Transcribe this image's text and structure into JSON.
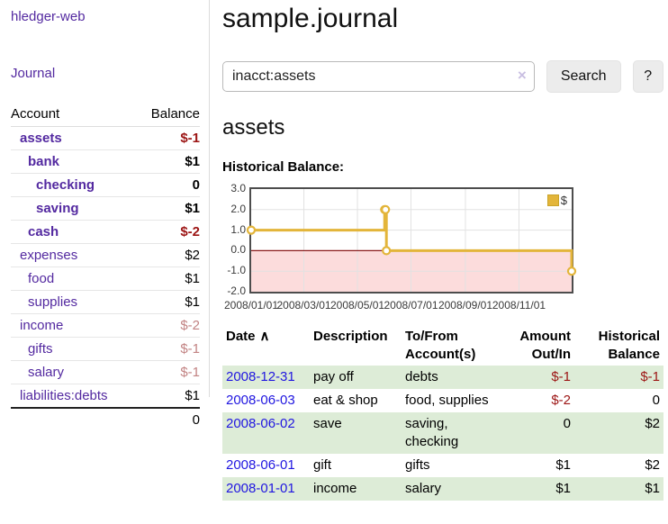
{
  "theme": {
    "purple": "#5329a0",
    "blue": "#2016e0",
    "neg": "#9c1514",
    "negsoft": "#c28383",
    "rowgreen": "#ddecd7",
    "gold": "#e3b53a",
    "pink": "#fcdcdc",
    "zero": "#8b1c1c",
    "gridborder": "#4d4d4d",
    "gridline": "#e2e2e2",
    "btnbg": "#ececec",
    "clearx": "#c9bfe2"
  },
  "sidebar": {
    "app_title": "hledger-web",
    "journal_label": "Journal",
    "accounts_table": {
      "headers": {
        "account": "Account",
        "balance": "Balance"
      },
      "rows": [
        {
          "name": "assets",
          "balance": "$-1",
          "indent": 1,
          "bold": true,
          "link_color": "purple",
          "balance_style": "neg"
        },
        {
          "name": "bank",
          "balance": "$1",
          "indent": 2,
          "bold": true,
          "link_color": "purple",
          "balance_style": "plain"
        },
        {
          "name": "checking",
          "balance": "0",
          "indent": 3,
          "bold": true,
          "link_color": "purple",
          "balance_style": "plain"
        },
        {
          "name": "saving",
          "balance": "$1",
          "indent": 3,
          "bold": true,
          "link_color": "purple",
          "balance_style": "plain"
        },
        {
          "name": "cash",
          "balance": "$-2",
          "indent": 2,
          "bold": true,
          "link_color": "purple",
          "balance_style": "neg"
        },
        {
          "name": "expenses",
          "balance": "$2",
          "indent": 1,
          "bold": false,
          "link_color": "purple",
          "balance_style": "plain-normal"
        },
        {
          "name": "food",
          "balance": "$1",
          "indent": 2,
          "bold": false,
          "link_color": "purple",
          "balance_style": "plain-normal"
        },
        {
          "name": "supplies",
          "balance": "$1",
          "indent": 2,
          "bold": false,
          "link_color": "purple",
          "balance_style": "plain-normal"
        },
        {
          "name": "income",
          "balance": "$-2",
          "indent": 1,
          "bold": false,
          "link_color": "purple",
          "balance_style": "negsoft"
        },
        {
          "name": "gifts",
          "balance": "$-1",
          "indent": 2,
          "bold": false,
          "link_color": "purple",
          "balance_style": "negsoft"
        },
        {
          "name": "salary",
          "balance": "$-1",
          "indent": 2,
          "bold": false,
          "link_color": "blue",
          "balance_style": "negsoft"
        },
        {
          "name": "liabilities:debts",
          "balance": "$1",
          "indent": 1,
          "bold": false,
          "link_color": "purple",
          "balance_style": "plain-normal"
        }
      ],
      "total": "0"
    }
  },
  "main": {
    "title": "sample.journal",
    "search": {
      "value": "inacct:assets",
      "clear_icon": "×",
      "button_label": "Search",
      "help_label": "?"
    },
    "section_title": "assets"
  },
  "chart_data": {
    "type": "line",
    "title": "Historical Balance:",
    "step": true,
    "ylim": [
      -2,
      3
    ],
    "yticks": [
      "3.0",
      "2.0",
      "1.0",
      "0.0",
      "-1.0",
      "-2.0"
    ],
    "ytick_values": [
      3,
      2,
      1,
      0,
      -1,
      -2
    ],
    "xticks": [
      "2008/01/01",
      "2008/03/01",
      "2008/05/01",
      "2008/07/01",
      "2008/09/01",
      "2008/11/01"
    ],
    "xtick_days": [
      0,
      60,
      121,
      182,
      244,
      305
    ],
    "x_total_days": 365,
    "grid": true,
    "legend_position": "top-right",
    "series": [
      {
        "name": "$",
        "points": [
          {
            "x": "2008-01-01",
            "day": 0,
            "y": 1
          },
          {
            "x": "2008-06-01",
            "day": 152,
            "y": 2
          },
          {
            "x": "2008-06-02",
            "day": 153,
            "y": 2
          },
          {
            "x": "2008-06-03",
            "day": 154,
            "y": 0
          },
          {
            "x": "2008-12-31",
            "day": 365,
            "y": -1
          }
        ]
      }
    ]
  },
  "register": {
    "headers": {
      "date": "Date",
      "description": "Description",
      "accounts": "To/From Account(s)",
      "amount": "Amount Out/In",
      "balance": "Historical Balance"
    },
    "sort_glyph": "∧",
    "rows": [
      {
        "date": "2008-12-31",
        "description": "pay off",
        "accounts": "debts",
        "amount": "$-1",
        "balance": "$-1",
        "shaded": true
      },
      {
        "date": "2008-06-03",
        "description": "eat & shop",
        "accounts": "food, supplies",
        "amount": "$-2",
        "balance": "0",
        "shaded": false
      },
      {
        "date": "2008-06-02",
        "description": "save",
        "accounts": "saving, checking",
        "amount": "0",
        "balance": "$2",
        "shaded": true
      },
      {
        "date": "2008-06-01",
        "description": "gift",
        "accounts": "gifts",
        "amount": "$1",
        "balance": "$2",
        "shaded": false
      },
      {
        "date": "2008-01-01",
        "description": "income",
        "accounts": "salary",
        "amount": "$1",
        "balance": "$1",
        "shaded": true
      }
    ]
  }
}
